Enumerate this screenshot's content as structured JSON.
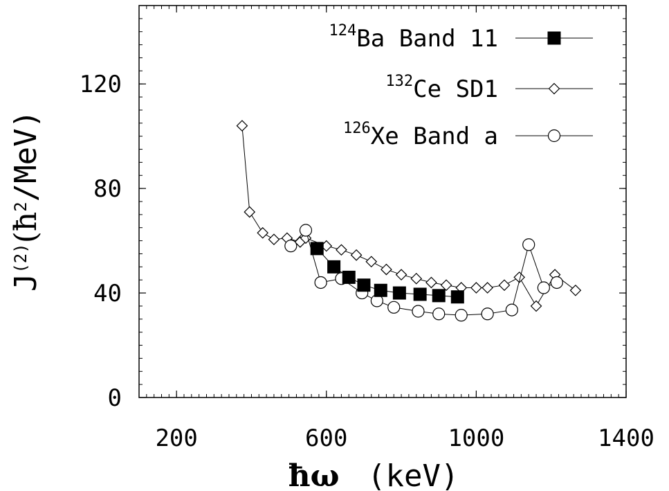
{
  "chart_data": {
    "type": "line",
    "xlabel": "ħω (keV)",
    "ylabel": "J(2)(ħ2/MeV)",
    "ylabel_parts": {
      "main": "J",
      "sup1": "(2)",
      "mid": "(ħ",
      "sup2": "2",
      "end": "/MeV)"
    },
    "xlabel_parts": {
      "symbol": "ħω",
      "units": "(keV)"
    },
    "xlim": [
      100,
      1400
    ],
    "ylim": [
      0,
      150
    ],
    "xticks": [
      200,
      600,
      1000,
      1400
    ],
    "yticks": [
      0,
      40,
      80,
      120
    ],
    "grid": false,
    "legend_position": "top-right",
    "series": [
      {
        "name": "Ba Band 11",
        "name_sup": "124",
        "marker": "filled-square",
        "x": [
          575,
          620,
          660,
          700,
          745,
          795,
          850,
          900,
          950
        ],
        "y": [
          57,
          50,
          46,
          43,
          41,
          40,
          39.5,
          39,
          38.5
        ]
      },
      {
        "name": "Ce SD1",
        "name_sup": "132",
        "marker": "open-diamond",
        "x": [
          375,
          395,
          430,
          460,
          495,
          530,
          545,
          600,
          640,
          680,
          720,
          760,
          800,
          840,
          880,
          920,
          960,
          1000,
          1030,
          1075,
          1115,
          1160,
          1210,
          1265
        ],
        "y": [
          104,
          71,
          63,
          60.5,
          61,
          59.5,
          61,
          58,
          56.5,
          54.5,
          52,
          49,
          47,
          45.5,
          44,
          43,
          42,
          42,
          42,
          43,
          46,
          35,
          47,
          41
        ]
      },
      {
        "name": "Xe Band a",
        "name_sup": "126",
        "marker": "open-circle",
        "x": [
          505,
          545,
          585,
          640,
          695,
          735,
          780,
          845,
          900,
          960,
          1030,
          1095,
          1140,
          1180,
          1215
        ],
        "y": [
          58,
          64,
          44,
          45.5,
          40,
          37,
          34.5,
          33,
          32,
          31.5,
          32,
          33.5,
          58.5,
          42,
          44
        ]
      }
    ]
  }
}
